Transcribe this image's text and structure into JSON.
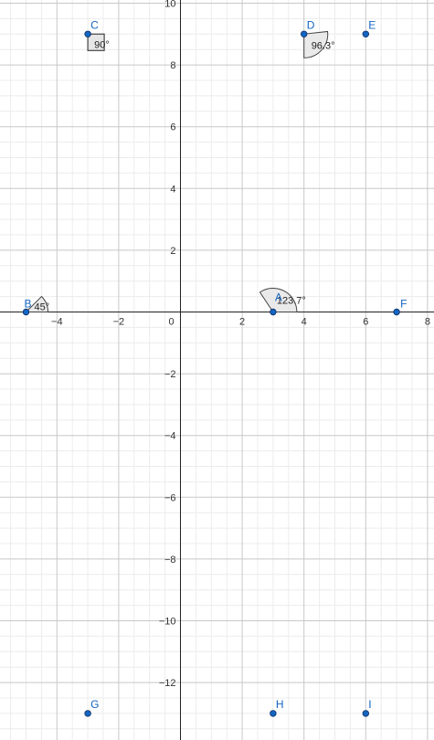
{
  "graph": {
    "x_ticks": [
      {
        "value": -4,
        "label": "−4"
      },
      {
        "value": -2,
        "label": "−2"
      },
      {
        "value": 0,
        "label": "0"
      },
      {
        "value": 2,
        "label": "2"
      },
      {
        "value": 4,
        "label": "4"
      },
      {
        "value": 6,
        "label": "6"
      },
      {
        "value": 8,
        "label": "8"
      }
    ],
    "y_ticks": [
      {
        "value": 10,
        "label": "10"
      },
      {
        "value": 8,
        "label": "8"
      },
      {
        "value": 6,
        "label": "6"
      },
      {
        "value": 4,
        "label": "4"
      },
      {
        "value": 2,
        "label": "2"
      },
      {
        "value": -2,
        "label": "−2"
      },
      {
        "value": -4,
        "label": "−4"
      },
      {
        "value": -6,
        "label": "−6"
      },
      {
        "value": -8,
        "label": "−8"
      },
      {
        "value": -10,
        "label": "−10"
      },
      {
        "value": -12,
        "label": "−12"
      }
    ],
    "points": [
      {
        "label": "A",
        "x": 3,
        "y": 0
      },
      {
        "label": "B",
        "x": -5,
        "y": 0
      },
      {
        "label": "C",
        "x": -3,
        "y": 9
      },
      {
        "label": "D",
        "x": 4,
        "y": 9
      },
      {
        "label": "E",
        "x": 6,
        "y": 9
      },
      {
        "label": "F",
        "x": 7,
        "y": 0
      },
      {
        "label": "G",
        "x": -3,
        "y": -13
      },
      {
        "label": "H",
        "x": 3,
        "y": -13
      },
      {
        "label": "I",
        "x": 6,
        "y": -13
      }
    ],
    "angles": [
      {
        "vertex": "C",
        "label": "90°"
      },
      {
        "vertex": "D",
        "label": "96.3°"
      },
      {
        "vertex": "A",
        "label": "123.7°"
      },
      {
        "vertex": "B",
        "label": "45°"
      }
    ],
    "colors": {
      "point_fill": "#1565c0",
      "point_label": "#1565c0",
      "angle_fill": "#e6e6e6",
      "angle_stroke": "#444444",
      "major_grid": "#c8c8c8",
      "minor_grid": "#ececec",
      "axis": "#222222"
    }
  }
}
